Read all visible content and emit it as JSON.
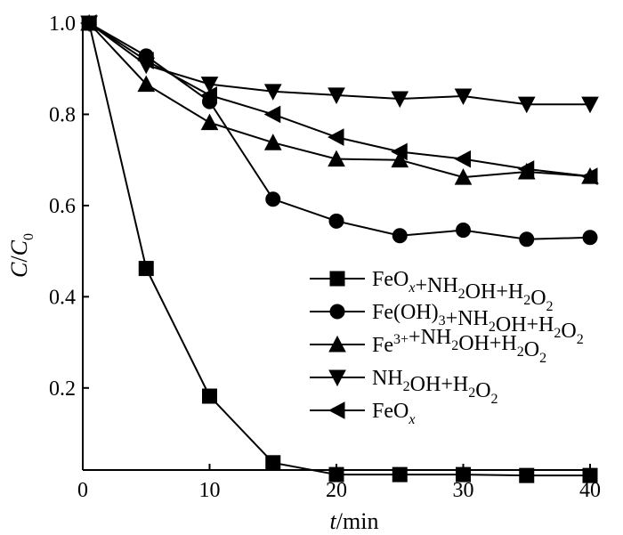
{
  "chart_data": {
    "type": "line",
    "xlabel": {
      "italic": "t",
      "rest": "/min"
    },
    "ylabel": {
      "c": "C",
      "slash": "/",
      "c0": "C",
      "sub": "0"
    },
    "xlim": [
      0,
      40
    ],
    "ylim": [
      0.02,
      1.0
    ],
    "xticks": [
      0,
      10,
      20,
      30,
      40
    ],
    "yticks": [
      0.2,
      0.4,
      0.6,
      0.8,
      1.0
    ],
    "xtick_labels": [
      "0",
      "10",
      "20",
      "30",
      "40"
    ],
    "ytick_labels": [
      "0.2",
      "0.4",
      "0.6",
      "0.8",
      "1.0"
    ],
    "legend_position": "center-right",
    "series": [
      {
        "marker": "square",
        "x": [
          0.5,
          5,
          10,
          15,
          20,
          25,
          30,
          35,
          40
        ],
        "y": [
          1.0,
          0.462,
          0.182,
          0.036,
          0.01,
          0.01,
          0.01,
          0.008,
          0.008
        ],
        "legend": [
          {
            "t": "FeO"
          },
          {
            "t": "x",
            "cls": "sub",
            "italic": true
          },
          {
            "t": "+NH"
          },
          {
            "t": "2",
            "cls": "sub"
          },
          {
            "t": "OH+H"
          },
          {
            "t": "2",
            "cls": "sub"
          },
          {
            "t": "O"
          },
          {
            "t": "2",
            "cls": "sub"
          }
        ]
      },
      {
        "marker": "circle",
        "x": [
          0.5,
          5,
          10,
          15,
          20,
          25,
          30,
          35,
          40
        ],
        "y": [
          1.0,
          0.928,
          0.828,
          0.614,
          0.566,
          0.534,
          0.546,
          0.526,
          0.53
        ],
        "legend": [
          {
            "t": "Fe(OH)"
          },
          {
            "t": "3",
            "cls": "sub"
          },
          {
            "t": "+NH"
          },
          {
            "t": "2",
            "cls": "sub"
          },
          {
            "t": "OH+H"
          },
          {
            "t": "2",
            "cls": "sub"
          },
          {
            "t": "O"
          },
          {
            "t": "2",
            "cls": "sub"
          }
        ]
      },
      {
        "marker": "triangle-up",
        "x": [
          0.5,
          5,
          10,
          15,
          20,
          25,
          30,
          35,
          40
        ],
        "y": [
          1.0,
          0.866,
          0.782,
          0.738,
          0.702,
          0.7,
          0.662,
          0.674,
          0.664
        ],
        "legend": [
          {
            "t": "Fe"
          },
          {
            "t": "3+",
            "cls": "sup"
          },
          {
            "t": "+NH"
          },
          {
            "t": "2",
            "cls": "sub"
          },
          {
            "t": "OH+H"
          },
          {
            "t": "2",
            "cls": "sub"
          },
          {
            "t": "O"
          },
          {
            "t": "2",
            "cls": "sub"
          }
        ]
      },
      {
        "marker": "triangle-down",
        "x": [
          0.5,
          5,
          10,
          15,
          20,
          25,
          30,
          35,
          40
        ],
        "y": [
          1.0,
          0.908,
          0.866,
          0.85,
          0.842,
          0.834,
          0.84,
          0.822,
          0.822
        ],
        "legend": [
          {
            "t": "NH"
          },
          {
            "t": "2",
            "cls": "sub"
          },
          {
            "t": "OH+H"
          },
          {
            "t": "2",
            "cls": "sub"
          },
          {
            "t": "O"
          },
          {
            "t": "2",
            "cls": "sub"
          }
        ]
      },
      {
        "marker": "triangle-left",
        "x": [
          0.5,
          5,
          10,
          15,
          20,
          25,
          30,
          35,
          40
        ],
        "y": [
          1.0,
          0.918,
          0.842,
          0.8,
          0.75,
          0.718,
          0.702,
          0.68,
          0.664
        ],
        "legend": [
          {
            "t": "FeO"
          },
          {
            "t": "x",
            "cls": "sub",
            "italic": true
          }
        ]
      }
    ]
  }
}
